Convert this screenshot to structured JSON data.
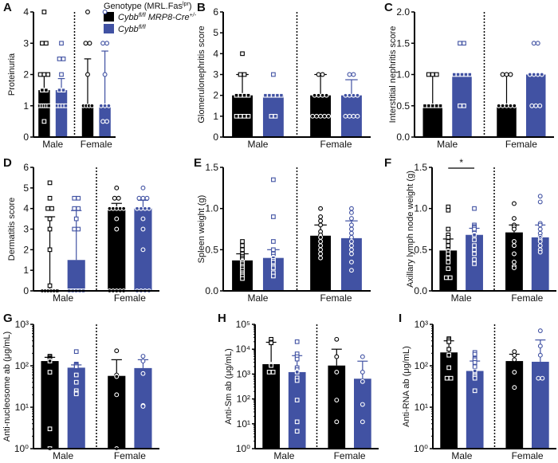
{
  "legend": {
    "title": "Genotype (MRL.Fas",
    "title_sup": "lpr",
    "title_end": ")",
    "items": [
      {
        "base": "Cybb",
        "sup": "fl/fl",
        "rest": " MRP8-Cre",
        "sup2": "+/-",
        "color": "#000000"
      },
      {
        "base": "Cybb",
        "sup": "fl/fl",
        "rest": "",
        "sup2": "",
        "color": "#4152a3"
      }
    ]
  },
  "colors": {
    "group1": "#000000",
    "group2": "#4152a3"
  },
  "chart_data": [
    {
      "panel": "A",
      "type": "bar",
      "ylabel": "Proteinuria",
      "yscale": "linear",
      "ylim": [
        0,
        4
      ],
      "yticks": [
        0,
        1,
        2,
        3,
        4
      ],
      "ytick_labels": [
        "0",
        "1",
        "2",
        "3",
        "4"
      ],
      "categories": [
        "Male",
        "Female"
      ],
      "series": [
        {
          "means": [
            1.5,
            1.0
          ],
          "err_upper": [
            2.0,
            2.5
          ],
          "points": [
            [
              4,
              3,
              3,
              2,
              2,
              2,
              1.5,
              1.5,
              1,
              1,
              1,
              1,
              1,
              0.5
            ],
            [
              4,
              3,
              3,
              2,
              1,
              1,
              1,
              1
            ]
          ]
        },
        {
          "means": [
            1.5,
            1.0
          ],
          "err_upper": [
            1.87,
            2.75
          ],
          "points": [
            [
              3,
              2.5,
              2.5,
              2,
              1.5,
              1.5,
              1,
              1,
              1,
              1
            ],
            [
              4,
              3,
              3,
              2,
              1,
              1,
              1,
              0.5,
              0.5
            ]
          ]
        }
      ]
    },
    {
      "panel": "B",
      "type": "bar",
      "ylabel": "Glomerulonephritis score",
      "yscale": "linear",
      "ylim": [
        0,
        6
      ],
      "yticks": [
        0,
        1,
        2,
        3,
        4,
        5,
        6
      ],
      "ytick_labels": [
        "0",
        "1",
        "2",
        "3",
        "4",
        "5",
        "6"
      ],
      "categories": [
        "Male",
        "Female"
      ],
      "series": [
        {
          "means": [
            2.0,
            2.0
          ],
          "err_upper": [
            3.0,
            3.0
          ],
          "points": [
            [
              4,
              3,
              3,
              2,
              2,
              2,
              2,
              1,
              1,
              1,
              1
            ],
            [
              3,
              3,
              2,
              2,
              2,
              2,
              1,
              1,
              1,
              1,
              1
            ]
          ]
        },
        {
          "means": [
            2.0,
            2.0
          ],
          "err_upper": [
            2.0,
            2.75
          ],
          "points": [
            [
              3,
              2,
              2,
              2,
              2,
              2,
              1,
              1
            ],
            [
              3,
              3,
              2,
              2,
              2,
              2,
              1,
              1,
              1,
              1
            ]
          ]
        }
      ]
    },
    {
      "panel": "C",
      "type": "bar",
      "ylabel": "Interstitial nephritis score",
      "yscale": "linear",
      "ylim": [
        0,
        2
      ],
      "yticks": [
        0,
        0.5,
        1,
        1.5,
        2
      ],
      "ytick_labels": [
        "0.0",
        "0.5",
        "1.0",
        "1.5",
        "2.0"
      ],
      "categories": [
        "Male",
        "Female"
      ],
      "series": [
        {
          "means": [
            0.5,
            0.5
          ],
          "err_upper": [
            1.0,
            1.0
          ],
          "points": [
            [
              1,
              1,
              1,
              0.5,
              0.5,
              0.5,
              0.5,
              0.5
            ],
            [
              1,
              1,
              1,
              0.5,
              0.5,
              0.5,
              0.5,
              0.5
            ]
          ]
        },
        {
          "means": [
            1.0,
            1.0
          ],
          "err_upper": [
            1.0,
            1.0
          ],
          "points": [
            [
              1.5,
              1.5,
              1,
              1,
              1,
              1,
              1,
              0.5,
              0.5
            ],
            [
              1.5,
              1.5,
              1,
              1,
              1,
              1,
              0.5,
              0.5,
              0.5
            ]
          ]
        }
      ]
    },
    {
      "panel": "D",
      "type": "bar",
      "ylabel": "Dermatitis score",
      "yscale": "linear",
      "ylim": [
        0,
        6
      ],
      "yticks": [
        0,
        1,
        2,
        3,
        4,
        5,
        6
      ],
      "ytick_labels": [
        "0",
        "1",
        "2",
        "3",
        "4",
        "5",
        "6"
      ],
      "categories": [
        "Male",
        "Female"
      ],
      "series": [
        {
          "means": [
            0.0,
            4.0
          ],
          "err_upper": [
            3.6,
            4.25
          ],
          "points": [
            [
              5.25,
              4.5,
              4,
              4,
              3.5,
              3,
              2,
              0.25,
              0,
              0,
              0,
              0,
              0,
              0
            ],
            [
              5,
              4.5,
              4.5,
              4,
              4,
              4,
              4,
              4,
              3.5,
              3,
              0,
              0,
              0,
              0,
              0
            ]
          ]
        },
        {
          "means": [
            1.5,
            4.0
          ],
          "err_upper": [
            3.9,
            4.4
          ],
          "points": [
            [
              4.5,
              4.5,
              4,
              4,
              3.5,
              3,
              3,
              0,
              0,
              0,
              0,
              0
            ],
            [
              5,
              4.5,
              4.5,
              4.5,
              4,
              4,
              4,
              4,
              3.5,
              3,
              2,
              0,
              0,
              0,
              0
            ]
          ]
        }
      ]
    },
    {
      "panel": "E",
      "type": "bar",
      "ylabel": "Spleen weight (g)",
      "yscale": "linear",
      "ylim": [
        0,
        1.5
      ],
      "yticks": [
        0,
        0.5,
        1,
        1.5
      ],
      "ytick_labels": [
        "0.0",
        "0.5",
        "1.0",
        "1.5"
      ],
      "categories": [
        "Male",
        "Female"
      ],
      "series": [
        {
          "means": [
            0.37,
            0.67
          ],
          "err_upper": [
            0.45,
            0.8
          ],
          "points": [
            [
              0.6,
              0.55,
              0.5,
              0.45,
              0.42,
              0.4,
              0.38,
              0.35,
              0.33,
              0.3,
              0.28,
              0.25,
              0.22,
              0.2,
              0.18,
              0.15
            ],
            [
              1.0,
              0.9,
              0.85,
              0.8,
              0.72,
              0.68,
              0.65,
              0.6,
              0.55,
              0.5,
              0.45,
              0.4
            ]
          ]
        },
        {
          "means": [
            0.4,
            0.64
          ],
          "err_upper": [
            0.5,
            0.85
          ],
          "points": [
            [
              1.35,
              0.9,
              0.6,
              0.5,
              0.45,
              0.42,
              0.4,
              0.37,
              0.35,
              0.3,
              0.28,
              0.22,
              0.18
            ],
            [
              1.0,
              0.95,
              0.88,
              0.8,
              0.75,
              0.7,
              0.65,
              0.6,
              0.55,
              0.5,
              0.45,
              0.35,
              0.25
            ]
          ]
        }
      ]
    },
    {
      "panel": "F",
      "type": "bar",
      "ylabel": "Axillary lymph node weight (g)",
      "yscale": "linear",
      "ylim": [
        0,
        1.5
      ],
      "yticks": [
        0,
        0.5,
        1,
        1.5
      ],
      "ytick_labels": [
        "0.0",
        "0.5",
        "1.0",
        "1.5"
      ],
      "categories": [
        "Male",
        "Female"
      ],
      "annotation": "*",
      "series": [
        {
          "means": [
            0.49,
            0.71
          ],
          "err_upper": [
            0.63,
            0.8
          ],
          "points": [
            [
              1.02,
              0.98,
              0.75,
              0.68,
              0.65,
              0.6,
              0.55,
              0.5,
              0.48,
              0.45,
              0.4,
              0.35,
              0.27,
              0.16,
              0.16
            ],
            [
              1.06,
              0.88,
              0.8,
              0.78,
              0.75,
              0.6,
              0.55,
              0.45,
              0.35,
              0.3,
              0.28
            ]
          ]
        },
        {
          "means": [
            0.68,
            0.65
          ],
          "err_upper": [
            0.76,
            0.8
          ],
          "points": [
            [
              1.0,
              0.8,
              0.78,
              0.77,
              0.75,
              0.7,
              0.68,
              0.62,
              0.55,
              0.5,
              0.45,
              0.38,
              0.33
            ],
            [
              1.15,
              1.08,
              0.82,
              0.8,
              0.75,
              0.7,
              0.66,
              0.65,
              0.62,
              0.6,
              0.55,
              0.5,
              0.47
            ]
          ]
        }
      ]
    },
    {
      "panel": "G",
      "type": "bar",
      "ylabel": "Anti-nucleosome ab (μg/mL)",
      "yscale": "log",
      "ylim": [
        1,
        1000
      ],
      "yticks": [
        1,
        10,
        100,
        1000
      ],
      "ytick_labels": [
        "10⁰",
        "10¹",
        "10²",
        "10³"
      ],
      "categories": [
        "Male",
        "Female"
      ],
      "series": [
        {
          "means": [
            130,
            57
          ],
          "err_upper": [
            160,
            140
          ],
          "points": [
            [
              170,
              160,
              150,
              145,
              140,
              130,
              70,
              3,
              1
            ],
            [
              230,
              60,
              55,
              20,
              1
            ]
          ]
        },
        {
          "means": [
            90,
            88
          ],
          "err_upper": [
            105,
            140
          ],
          "points": [
            [
              220,
              110,
              105,
              100,
              95,
              60,
              40,
              25,
              22,
              21
            ],
            [
              170,
              130,
              65,
              11,
              10.5
            ]
          ]
        }
      ]
    },
    {
      "panel": "H",
      "type": "bar",
      "ylabel": "Anti-Sm ab (μg/mL)",
      "yscale": "log",
      "ylim": [
        1,
        100000
      ],
      "yticks": [
        1,
        10,
        100,
        1000,
        10000,
        100000
      ],
      "ytick_labels": [
        "10⁰",
        "10¹",
        "10²",
        "10³",
        "10⁴",
        "10⁵"
      ],
      "categories": [
        "Male",
        "Female"
      ],
      "series": [
        {
          "means": [
            2500,
            2200
          ],
          "err_upper": [
            19000,
            10000
          ],
          "points": [
            [
              25000,
              19000,
              18000,
              2500,
              2300,
              2200,
              1200,
              1200
            ],
            [
              25000,
              5000,
              1200,
              90,
              12
            ]
          ]
        },
        {
          "means": [
            1200,
            650
          ],
          "err_upper": [
            5500,
            3300
          ],
          "points": [
            [
              20000,
              6500,
              5000,
              4000,
              1800,
              1500,
              1200,
              700,
              550,
              90,
              12,
              5
            ],
            [
              5000,
              1200,
              500,
              60,
              12
            ]
          ]
        }
      ]
    },
    {
      "panel": "I",
      "type": "bar",
      "ylabel": "Anti-RNA ab (μg/mL)",
      "yscale": "log",
      "ylim": [
        1,
        1000
      ],
      "yticks": [
        1,
        10,
        100,
        1000
      ],
      "ytick_labels": [
        "10⁰",
        "10¹",
        "10²",
        "10³"
      ],
      "categories": [
        "Male",
        "Female"
      ],
      "series": [
        {
          "means": [
            210,
            130
          ],
          "err_upper": [
            400,
            190
          ],
          "points": [
            [
              450,
              420,
              380,
              250,
              180,
              90,
              50,
              50
            ],
            [
              220,
              180,
              140,
              70,
              30
            ]
          ]
        },
        {
          "means": [
            75,
            125
          ],
          "err_upper": [
            130,
            420
          ],
          "points": [
            [
              210,
              190,
              150,
              140,
              120,
              95,
              75,
              60,
              55,
              50,
              25
            ],
            [
              700,
              300,
              180,
              50,
              50
            ]
          ]
        }
      ]
    }
  ]
}
